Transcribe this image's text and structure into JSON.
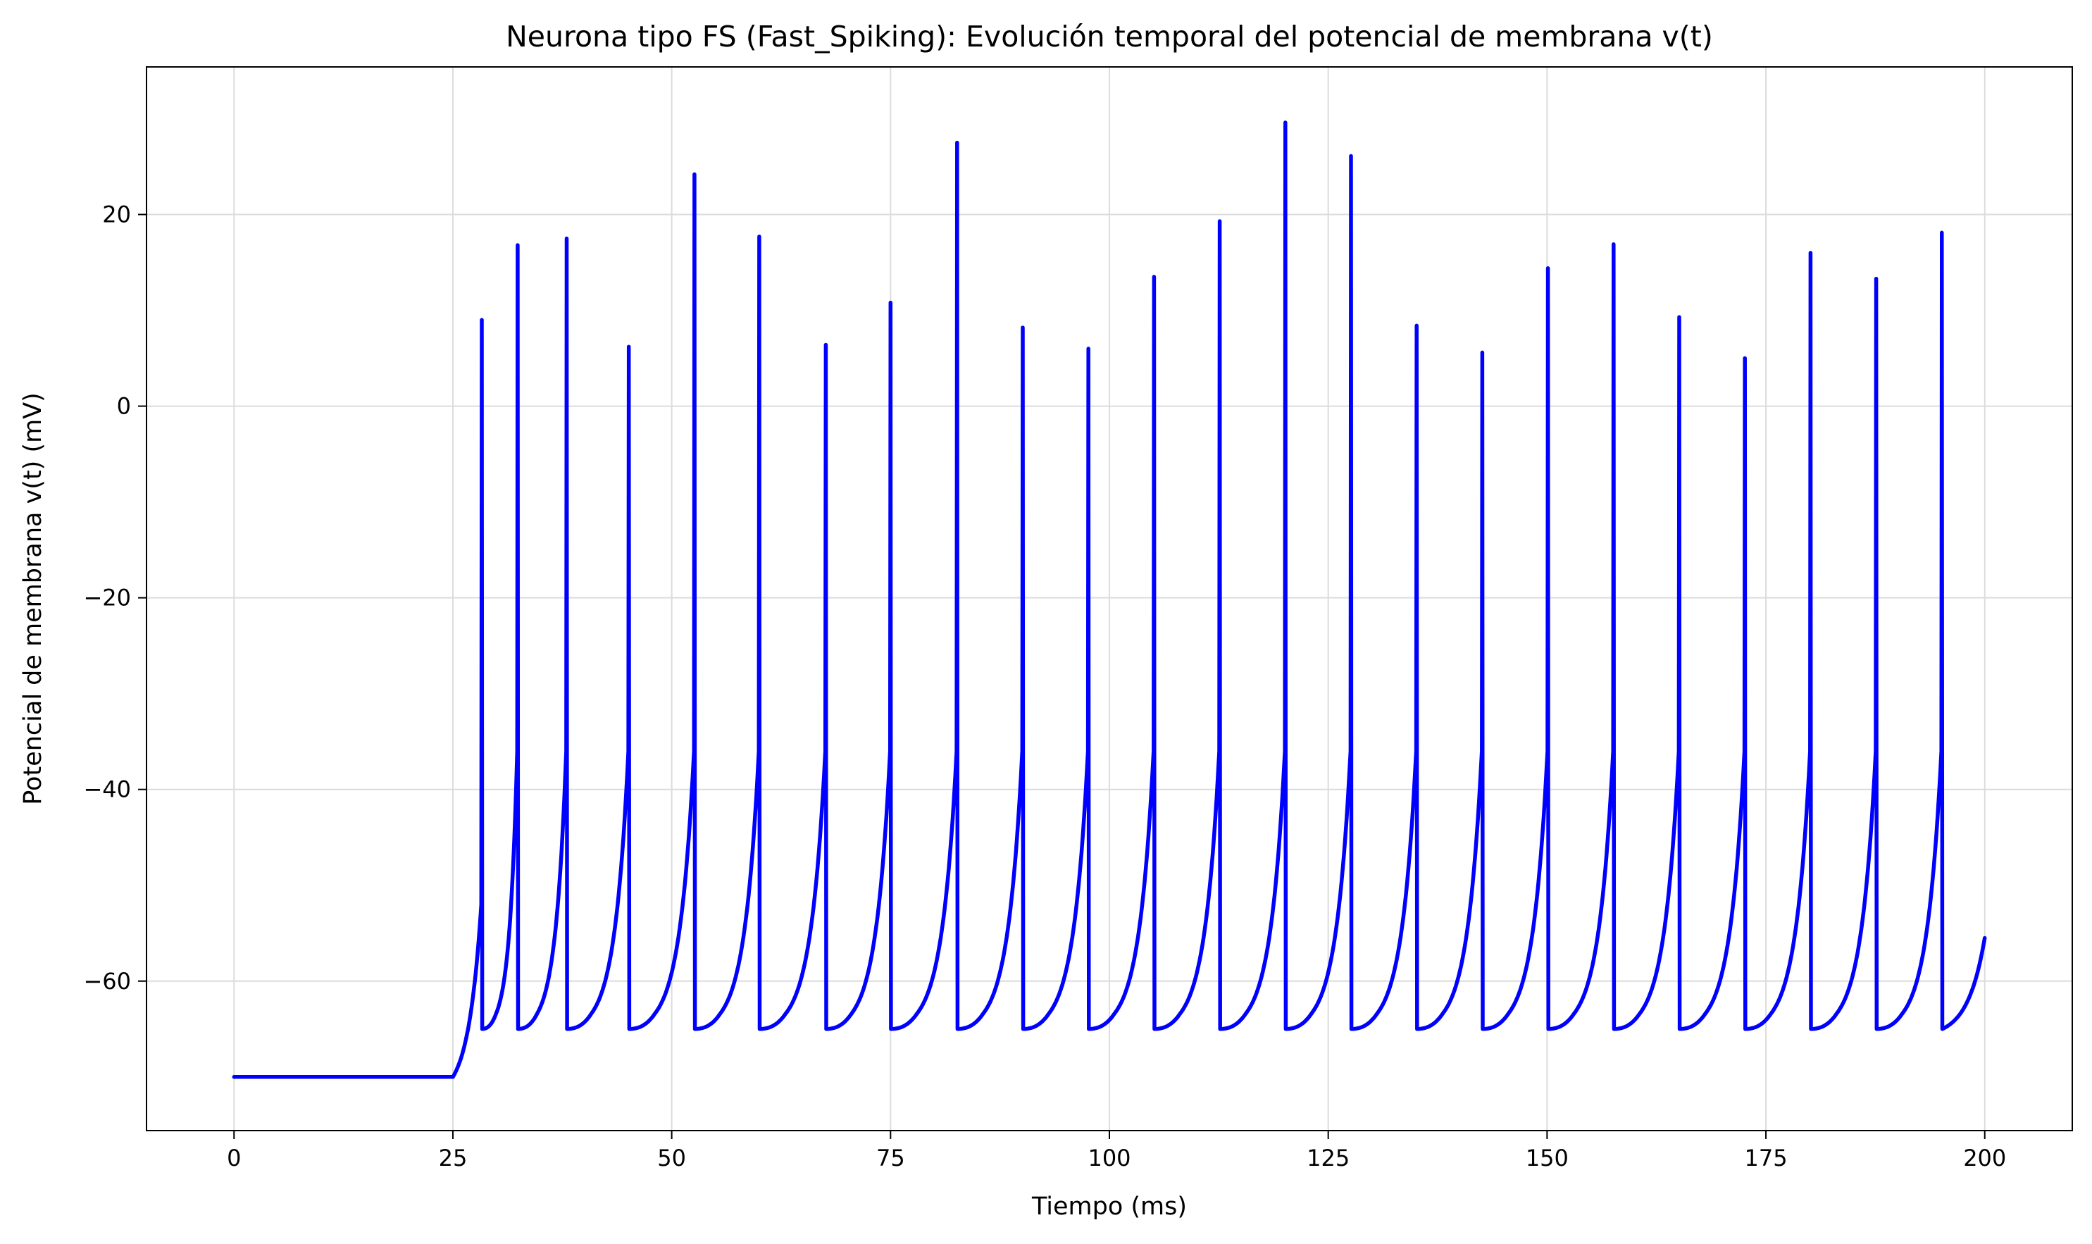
{
  "chart_data": {
    "type": "line",
    "title": "Neurona tipo FS (Fast_Spiking): Evolución temporal del potencial de membrana v(t)",
    "xlabel": "Tiempo (ms)",
    "ylabel": "Potencial de membrana v(t) (mV)",
    "xlim": [
      -10,
      210
    ],
    "ylim": [
      -75.6,
      35.4
    ],
    "xticks": [
      0,
      25,
      50,
      75,
      100,
      125,
      150,
      175,
      200
    ],
    "yticks": [
      -60,
      -40,
      -20,
      0,
      20
    ],
    "xtick_labels": [
      "0",
      "25",
      "50",
      "75",
      "100",
      "125",
      "150",
      "175",
      "200"
    ],
    "ytick_labels": [
      "−60",
      "−40",
      "−20",
      "0",
      "20"
    ],
    "grid": true,
    "legend": "none",
    "series": [
      {
        "color": "#0000ff",
        "rest_potential": -70,
        "reset_potential": -65,
        "stimulus_onset": 25,
        "t_end": 200,
        "v_end": -55.5,
        "spike_times": [
          28.3,
          32.4,
          38.0,
          45.1,
          52.6,
          60.0,
          67.6,
          75.0,
          82.6,
          90.1,
          97.6,
          105.1,
          112.6,
          120.1,
          127.6,
          135.1,
          142.6,
          150.1,
          157.6,
          165.1,
          172.6,
          180.1,
          187.6,
          195.1
        ],
        "spike_peaks": [
          9.0,
          16.8,
          17.5,
          6.2,
          24.2,
          17.7,
          6.4,
          10.8,
          27.5,
          8.2,
          6.0,
          13.5,
          19.3,
          29.6,
          26.1,
          8.4,
          5.6,
          14.4,
          16.9,
          9.3,
          5.0,
          16.0,
          13.3,
          18.1
        ]
      }
    ]
  }
}
